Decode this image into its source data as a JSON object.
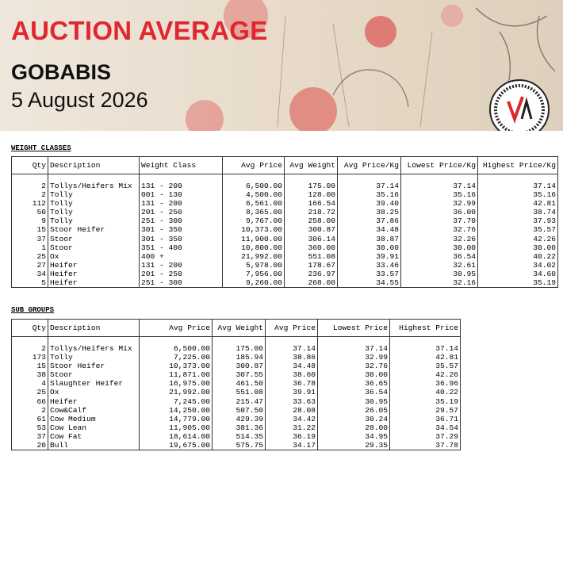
{
  "header": {
    "title": "AUCTION AVERAGE",
    "location": "GOBABIS",
    "date": "5 August 2026"
  },
  "weight_classes": {
    "title": "WEIGHT CLASSES",
    "columns": [
      "Qty",
      "Description",
      "Weight Class",
      "Avg Price",
      "Avg Weight",
      "Avg Price/Kg",
      "Lowest Price/Kg",
      "Highest Price/Kg"
    ],
    "rows": [
      [
        "2",
        "Tollys/Heifers Mix",
        "131 - 200",
        "6,500.00",
        "175.00",
        "37.14",
        "37.14",
        "37.14"
      ],
      [
        "2",
        "Tolly",
        "001 - 130",
        "4,500.00",
        "128.00",
        "35.16",
        "35.16",
        "35.16"
      ],
      [
        "112",
        "Tolly",
        "131 - 200",
        "6,561.00",
        "166.54",
        "39.40",
        "32.99",
        "42.81"
      ],
      [
        "50",
        "Tolly",
        "201 - 250",
        "8,365.00",
        "218.72",
        "38.25",
        "36.00",
        "38.74"
      ],
      [
        "9",
        "Tolly",
        "251 - 300",
        "9,767.00",
        "258.00",
        "37.86",
        "37.70",
        "37.93"
      ],
      [
        "15",
        "Stoor Heifer",
        "301 - 350",
        "10,373.00",
        "300.87",
        "34.48",
        "32.76",
        "35.57"
      ],
      [
        "37",
        "Stoor",
        "301 - 350",
        "11,900.00",
        "306.14",
        "38.87",
        "32.26",
        "42.26"
      ],
      [
        "1",
        "Stoor",
        "351 - 400",
        "10,800.00",
        "360.00",
        "30.00",
        "30.00",
        "30.00"
      ],
      [
        "25",
        "Ox",
        "400 +",
        "21,992.00",
        "551.08",
        "39.91",
        "36.54",
        "40.22"
      ],
      [
        "27",
        "Heifer",
        "131 - 200",
        "5,978.00",
        "178.67",
        "33.46",
        "32.61",
        "34.02"
      ],
      [
        "34",
        "Heifer",
        "201 - 250",
        "7,956.00",
        "236.97",
        "33.57",
        "30.95",
        "34.60"
      ],
      [
        "5",
        "Heifer",
        "251 - 300",
        "9,260.00",
        "268.00",
        "34.55",
        "32.16",
        "35.19"
      ]
    ]
  },
  "sub_groups": {
    "title": "SUB GROUPS",
    "columns": [
      "Qty",
      "Description",
      "Avg Price",
      "Avg Weight",
      "Avg Price",
      "Lowest Price",
      "Highest Price"
    ],
    "rows": [
      [
        "2",
        "Tollys/Heifers Mix",
        "6,500.00",
        "175.00",
        "37.14",
        "37.14",
        "37.14"
      ],
      [
        "173",
        "Tolly",
        "7,225.00",
        "185.94",
        "38.86",
        "32.99",
        "42.81"
      ],
      [
        "15",
        "Stoor Heifer",
        "10,373.00",
        "300.87",
        "34.48",
        "32.76",
        "35.57"
      ],
      [
        "38",
        "Stoor",
        "11,871.00",
        "307.55",
        "38.60",
        "30.00",
        "42.26"
      ],
      [
        "4",
        "Slaughter Heifer",
        "16,975.00",
        "461.50",
        "36.78",
        "36.65",
        "36.96"
      ],
      [
        "25",
        "Ox",
        "21,992.00",
        "551.08",
        "39.91",
        "36.54",
        "40.22"
      ],
      [
        "66",
        "Heifer",
        "7,245.00",
        "215.47",
        "33.63",
        "30.95",
        "35.19"
      ],
      [
        "2",
        "Cow&Calf",
        "14,250.00",
        "507.50",
        "28.08",
        "26.05",
        "29.57"
      ],
      [
        "61",
        "Cow Medium",
        "14,779.00",
        "429.39",
        "34.42",
        "30.24",
        "36.71"
      ],
      [
        "53",
        "Cow Lean",
        "11,905.00",
        "381.36",
        "31.22",
        "28.00",
        "34.54"
      ],
      [
        "37",
        "Cow Fat",
        "18,614.00",
        "514.35",
        "36.19",
        "34.95",
        "37.29"
      ],
      [
        "20",
        "Bull",
        "19,675.00",
        "575.75",
        "34.17",
        "29.35",
        "37.78"
      ]
    ]
  }
}
